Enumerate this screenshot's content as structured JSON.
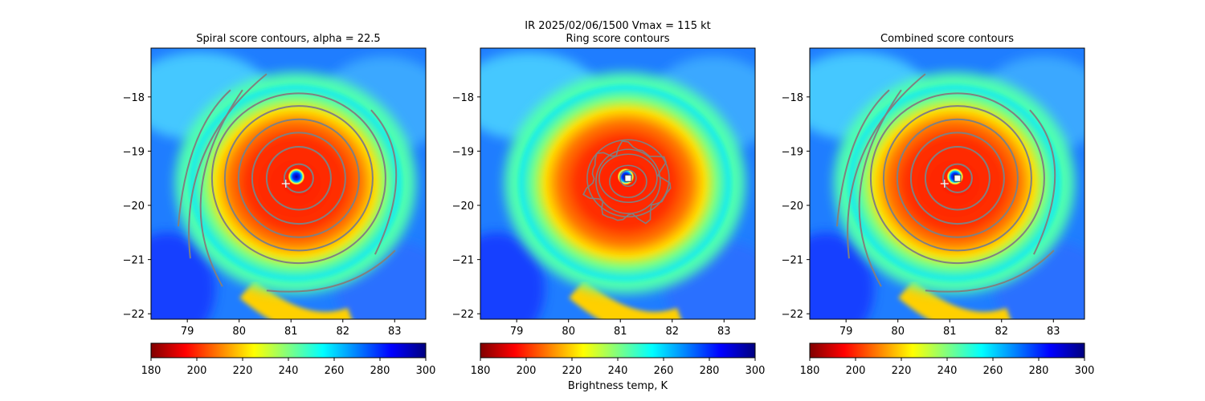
{
  "figure": {
    "suptitle": "IR  2025/02/06/1500    Vmax = 115 kt",
    "colorbar_label": "Brightness temp, K"
  },
  "colors": {
    "colormap": [
      "#800000",
      "#ff0000",
      "#ff8000",
      "#ffff00",
      "#80ff80",
      "#00ffff",
      "#0080ff",
      "#0000ff",
      "#000080"
    ],
    "contour": "#808080",
    "center_marker": "#ffffff"
  },
  "chart_data": [
    {
      "type": "heatmap",
      "title": "Spiral score contours, alpha = 22.5",
      "xlim": [
        78.3,
        83.6
      ],
      "ylim": [
        -22.1,
        -17.1
      ],
      "xticks": [
        79,
        80,
        81,
        82,
        83
      ],
      "yticks": [
        -18,
        -19,
        -20,
        -21,
        -22
      ],
      "colorbar": {
        "vmin": 180,
        "vmax": 300,
        "ticks": [
          180,
          200,
          220,
          240,
          260,
          280,
          300
        ]
      },
      "eye_center": [
        81.15,
        -19.5
      ],
      "cross_marker": [
        80.9,
        -19.6
      ],
      "box_marker": null,
      "contours": "spiral"
    },
    {
      "type": "heatmap",
      "title": "Ring score contours",
      "xlim": [
        78.3,
        83.6
      ],
      "ylim": [
        -22.1,
        -17.1
      ],
      "xticks": [
        79,
        80,
        81,
        82,
        83
      ],
      "yticks": [
        -18,
        -19,
        -20,
        -21,
        -22
      ],
      "colorbar": {
        "vmin": 180,
        "vmax": 300,
        "ticks": [
          180,
          200,
          220,
          240,
          260,
          280,
          300
        ]
      },
      "eye_center": [
        81.15,
        -19.5
      ],
      "cross_marker": null,
      "box_marker": [
        81.15,
        -19.5
      ],
      "contours": "ring"
    },
    {
      "type": "heatmap",
      "title": "Combined score contours",
      "xlim": [
        78.3,
        83.6
      ],
      "ylim": [
        -22.1,
        -17.1
      ],
      "xticks": [
        79,
        80,
        81,
        82,
        83
      ],
      "yticks": [
        -18,
        -19,
        -20,
        -21,
        -22
      ],
      "colorbar": {
        "vmin": 180,
        "vmax": 300,
        "ticks": [
          180,
          200,
          220,
          240,
          260,
          280,
          300
        ]
      },
      "eye_center": [
        81.15,
        -19.5
      ],
      "cross_marker": [
        80.9,
        -19.6
      ],
      "box_marker": [
        81.15,
        -19.5
      ],
      "contours": "spiral"
    }
  ]
}
